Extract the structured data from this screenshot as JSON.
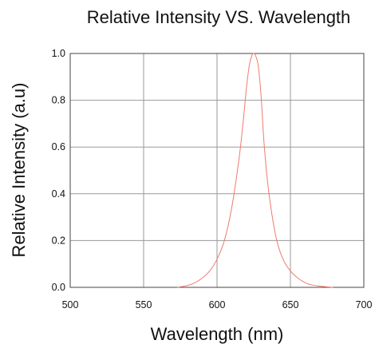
{
  "chart_data": {
    "type": "line",
    "title": "Relative Intensity VS. Wavelength",
    "xlabel": "Wavelength (nm)",
    "ylabel": "Relative Intensity (a.u)",
    "xlim": [
      500,
      700
    ],
    "ylim": [
      0,
      1.0
    ],
    "x_ticks": [
      "500",
      "550",
      "600",
      "650",
      "700"
    ],
    "y_ticks": [
      "0.0",
      "0.2",
      "0.4",
      "0.6",
      "0.8",
      "1.0"
    ],
    "grid": true,
    "series": [
      {
        "color": "#f07a6e",
        "x": [
          573,
          580,
          585,
          590,
          595,
          600,
          605,
          610,
          615,
          618,
          620,
          622,
          624,
          625,
          626,
          628,
          630,
          632,
          635,
          640,
          645,
          650,
          655,
          660,
          665,
          670,
          675,
          679
        ],
        "y": [
          0.0,
          0.008,
          0.02,
          0.04,
          0.07,
          0.12,
          0.2,
          0.34,
          0.55,
          0.72,
          0.85,
          0.95,
          0.995,
          1.0,
          0.995,
          0.95,
          0.82,
          0.62,
          0.42,
          0.22,
          0.12,
          0.07,
          0.04,
          0.02,
          0.01,
          0.005,
          0.002,
          0.0
        ]
      }
    ]
  }
}
